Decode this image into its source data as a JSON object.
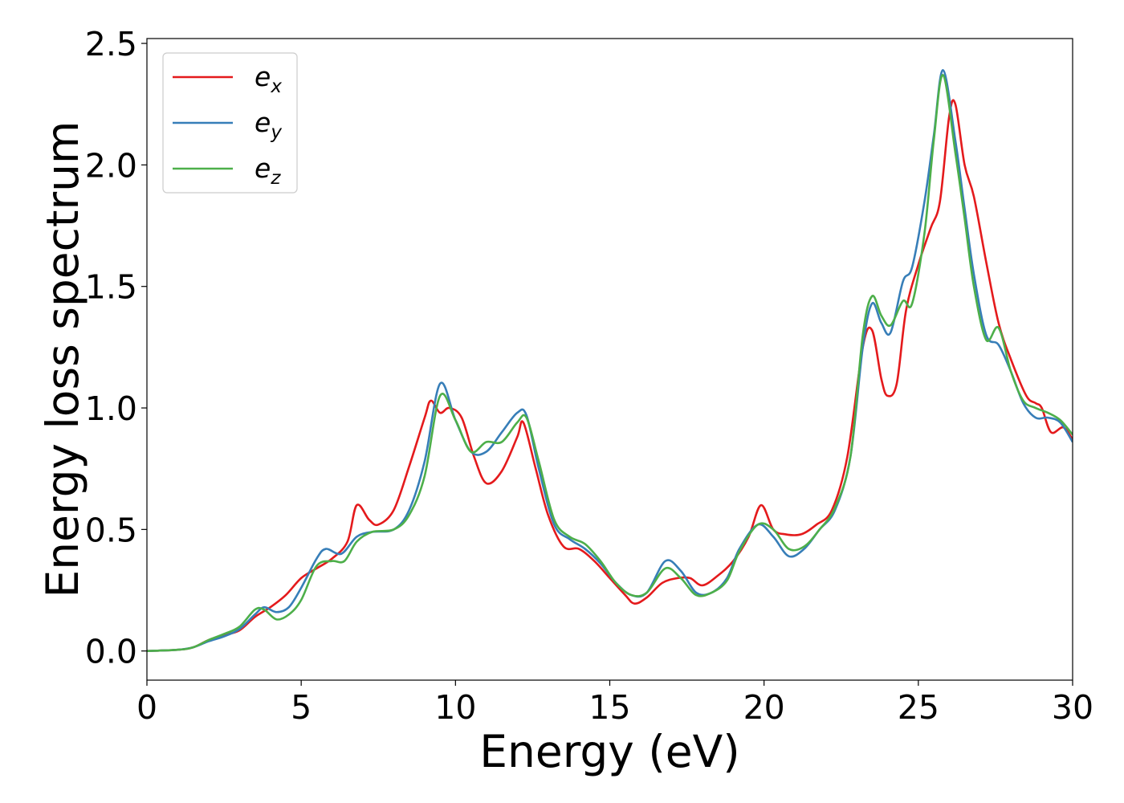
{
  "chart_data": {
    "type": "line",
    "title": "",
    "xlabel": "Energy (eV)",
    "ylabel": "Energy loss spectrum",
    "xlim": [
      0,
      30
    ],
    "ylim": [
      -0.12,
      2.52
    ],
    "xticks": [
      0,
      5,
      10,
      15,
      20,
      25,
      30
    ],
    "xtick_labels": [
      "0",
      "5",
      "10",
      "15",
      "20",
      "25",
      "30"
    ],
    "yticks": [
      0.0,
      0.5,
      1.0,
      1.5,
      2.0,
      2.5
    ],
    "ytick_labels": [
      "0.0",
      "0.5",
      "1.0",
      "1.5",
      "2.0",
      "2.5"
    ],
    "grid": false,
    "legend_position": "top-left",
    "series": [
      {
        "name": "e_x",
        "label_base": "e",
        "label_sub": "x",
        "color": "#e41a1c",
        "x": [
          0,
          1,
          1.5,
          2,
          2.5,
          3,
          3.5,
          4,
          4.5,
          5,
          5.5,
          6,
          6.5,
          6.8,
          7.2,
          7.5,
          8,
          8.5,
          9,
          9.2,
          9.5,
          9.8,
          10.2,
          10.6,
          11,
          11.5,
          12,
          12.2,
          12.6,
          13,
          13.5,
          14,
          14.5,
          15,
          15.5,
          15.8,
          16.2,
          16.7,
          17.2,
          17.6,
          18,
          18.5,
          19,
          19.5,
          19.9,
          20.3,
          20.7,
          21.2,
          21.7,
          22.2,
          22.7,
          23.2,
          23.5,
          23.8,
          24,
          24.3,
          24.6,
          25,
          25.4,
          25.7,
          26,
          26.2,
          26.5,
          26.8,
          27.2,
          27.6,
          28,
          28.5,
          28.8,
          29,
          29.3,
          29.7,
          30
        ],
        "y": [
          0,
          0.005,
          0.015,
          0.045,
          0.065,
          0.085,
          0.14,
          0.18,
          0.23,
          0.3,
          0.34,
          0.38,
          0.45,
          0.6,
          0.54,
          0.52,
          0.58,
          0.76,
          0.96,
          1.03,
          0.98,
          1.0,
          0.96,
          0.8,
          0.69,
          0.74,
          0.88,
          0.94,
          0.75,
          0.56,
          0.43,
          0.42,
          0.37,
          0.3,
          0.23,
          0.195,
          0.22,
          0.28,
          0.3,
          0.3,
          0.27,
          0.31,
          0.37,
          0.47,
          0.6,
          0.5,
          0.48,
          0.48,
          0.52,
          0.58,
          0.8,
          1.25,
          1.32,
          1.12,
          1.05,
          1.1,
          1.4,
          1.59,
          1.74,
          1.85,
          2.2,
          2.25,
          2.0,
          1.87,
          1.6,
          1.35,
          1.2,
          1.05,
          1.02,
          1.0,
          0.9,
          0.92,
          0.87
        ]
      },
      {
        "name": "e_y",
        "label_base": "e",
        "label_sub": "y",
        "color": "#377eb8",
        "x": [
          0,
          1,
          1.5,
          2,
          2.5,
          3,
          3.5,
          3.8,
          4.2,
          4.6,
          5,
          5.5,
          5.8,
          6.3,
          6.8,
          7.3,
          8,
          8.5,
          9,
          9.5,
          10,
          10.5,
          11,
          11.5,
          12,
          12.3,
          12.7,
          13.2,
          13.7,
          14.2,
          14.7,
          15.2,
          15.7,
          16.2,
          16.8,
          17.3,
          17.8,
          18.3,
          18.8,
          19.2,
          19.8,
          20.3,
          20.8,
          21.3,
          21.8,
          22.3,
          22.8,
          23.2,
          23.5,
          23.8,
          24.1,
          24.5,
          24.8,
          25.2,
          25.5,
          25.8,
          26.2,
          26.5,
          26.8,
          27.2,
          27.6,
          28,
          28.4,
          28.8,
          29.2,
          29.6,
          30
        ],
        "y": [
          0,
          0.005,
          0.015,
          0.04,
          0.06,
          0.09,
          0.15,
          0.18,
          0.16,
          0.18,
          0.26,
          0.38,
          0.42,
          0.4,
          0.47,
          0.49,
          0.5,
          0.58,
          0.78,
          1.1,
          0.95,
          0.82,
          0.82,
          0.9,
          0.98,
          0.97,
          0.75,
          0.52,
          0.46,
          0.42,
          0.36,
          0.28,
          0.23,
          0.24,
          0.37,
          0.33,
          0.24,
          0.24,
          0.3,
          0.42,
          0.52,
          0.47,
          0.39,
          0.42,
          0.5,
          0.58,
          0.8,
          1.25,
          1.43,
          1.35,
          1.31,
          1.52,
          1.58,
          1.85,
          2.12,
          2.39,
          2.1,
          1.82,
          1.55,
          1.3,
          1.26,
          1.15,
          1.02,
          0.96,
          0.96,
          0.94,
          0.86
        ]
      },
      {
        "name": "e_z",
        "label_base": "e",
        "label_sub": "z",
        "color": "#4daf4a",
        "x": [
          0,
          1,
          1.5,
          2,
          2.5,
          3,
          3.5,
          3.8,
          4.2,
          4.6,
          5,
          5.5,
          6,
          6.4,
          6.8,
          7.3,
          8,
          8.5,
          9,
          9.5,
          10,
          10.5,
          11,
          11.5,
          12,
          12.3,
          12.7,
          13.2,
          13.7,
          14.2,
          14.7,
          15.2,
          15.7,
          16.2,
          16.8,
          17.3,
          17.8,
          18.3,
          18.8,
          19.2,
          19.8,
          20.3,
          20.8,
          21.3,
          21.8,
          22.3,
          22.8,
          23.2,
          23.5,
          23.8,
          24.1,
          24.5,
          24.8,
          25.2,
          25.5,
          25.8,
          26.2,
          26.5,
          26.8,
          27.2,
          27.6,
          28,
          28.4,
          28.8,
          29.2,
          29.6,
          30
        ],
        "y": [
          0,
          0.005,
          0.015,
          0.045,
          0.07,
          0.1,
          0.17,
          0.17,
          0.13,
          0.15,
          0.21,
          0.35,
          0.37,
          0.37,
          0.45,
          0.49,
          0.5,
          0.56,
          0.72,
          1.05,
          0.95,
          0.82,
          0.86,
          0.86,
          0.94,
          0.96,
          0.78,
          0.54,
          0.47,
          0.44,
          0.37,
          0.28,
          0.23,
          0.24,
          0.34,
          0.3,
          0.23,
          0.24,
          0.29,
          0.41,
          0.52,
          0.5,
          0.42,
          0.43,
          0.5,
          0.59,
          0.8,
          1.3,
          1.46,
          1.38,
          1.34,
          1.44,
          1.43,
          1.72,
          2.1,
          2.37,
          2.05,
          1.78,
          1.5,
          1.28,
          1.33,
          1.15,
          1.03,
          1.0,
          0.98,
          0.95,
          0.89
        ]
      }
    ]
  }
}
